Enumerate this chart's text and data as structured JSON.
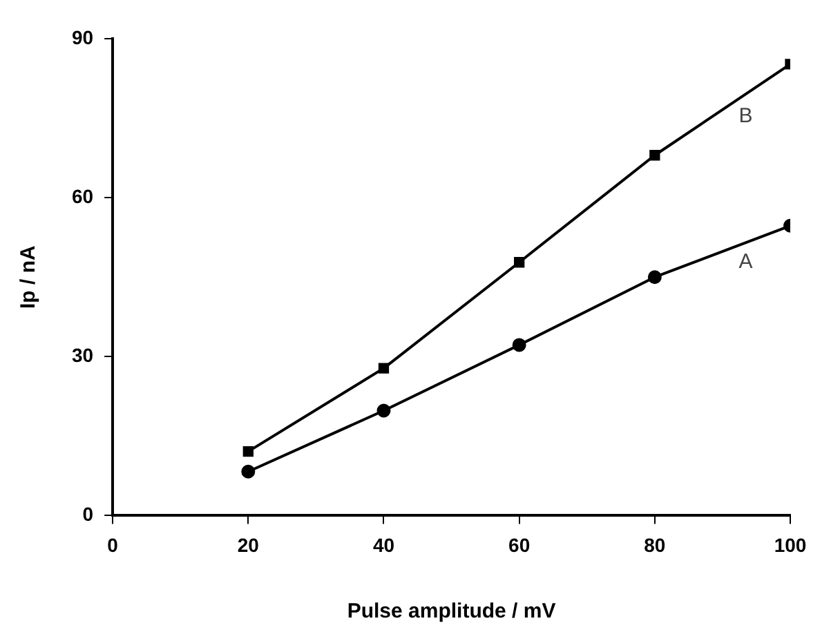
{
  "chart_data": {
    "type": "line",
    "xlabel": "Pulse amplitude / mV",
    "ylabel": "Ip / nA",
    "x": [
      20,
      40,
      60,
      80,
      100
    ],
    "series": [
      {
        "name": "A",
        "color": "#000000",
        "values": [
          8.3,
          19.8,
          32.2,
          45,
          54.7
        ],
        "marker": "circle"
      },
      {
        "name": "B",
        "color": "#000000",
        "values": [
          12.1,
          27.8,
          47.8,
          68,
          85.2
        ],
        "marker": "square"
      }
    ],
    "xlim": [
      0,
      100
    ],
    "xticks": [
      0,
      20,
      40,
      60,
      80,
      100
    ],
    "ylim": [
      0,
      90
    ],
    "yticks": [
      0,
      30,
      60,
      90
    ],
    "grid": false,
    "legend": false,
    "line_style": "solid"
  }
}
